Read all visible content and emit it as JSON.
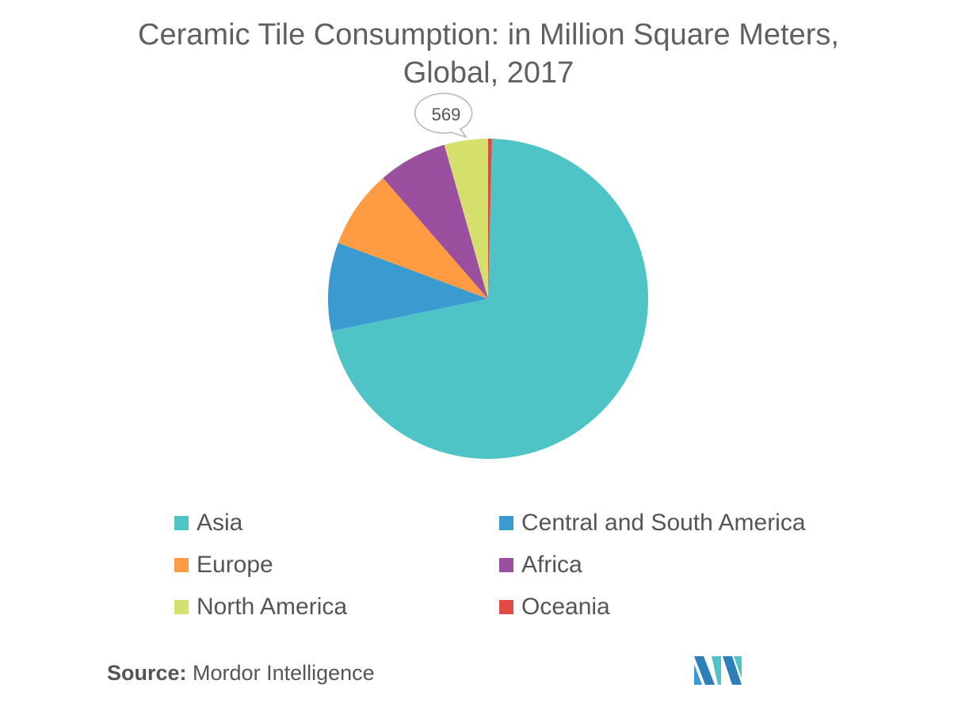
{
  "title_line1": "Ceramic Tile Consumption: in Million Square Meters,",
  "title_line2": "Global, 2017",
  "chart_data": {
    "type": "pie",
    "title": "Ceramic Tile Consumption: in Million Square Meters, Global, 2017",
    "slices": [
      {
        "label": "Asia",
        "value": 9200,
        "color": "#4FC4C7"
      },
      {
        "label": "Central and South America",
        "value": 1150,
        "color": "#3B9BD0"
      },
      {
        "label": "Europe",
        "value": 1020,
        "color": "#FF9B42"
      },
      {
        "label": "Africa",
        "value": 900,
        "color": "#9B4F9F"
      },
      {
        "label": "North America",
        "value": 569,
        "color": "#D4E06B"
      },
      {
        "label": "Oceania",
        "value": 50,
        "color": "#E04A44"
      }
    ],
    "data_labels": [
      {
        "slice": "North America",
        "text": "569"
      }
    ],
    "legend_position": "bottom"
  },
  "legend": [
    {
      "label": "Asia",
      "color": "#4FC4C7"
    },
    {
      "label": "Central and South America",
      "color": "#3B9BD0"
    },
    {
      "label": "Europe",
      "color": "#FF9B42"
    },
    {
      "label": "Africa",
      "color": "#9B4F9F"
    },
    {
      "label": "North America",
      "color": "#D4E06B"
    },
    {
      "label": "Oceania",
      "color": "#E04A44"
    }
  ],
  "source": {
    "prefix": "Source:",
    "text": "Mordor Intelligence"
  }
}
